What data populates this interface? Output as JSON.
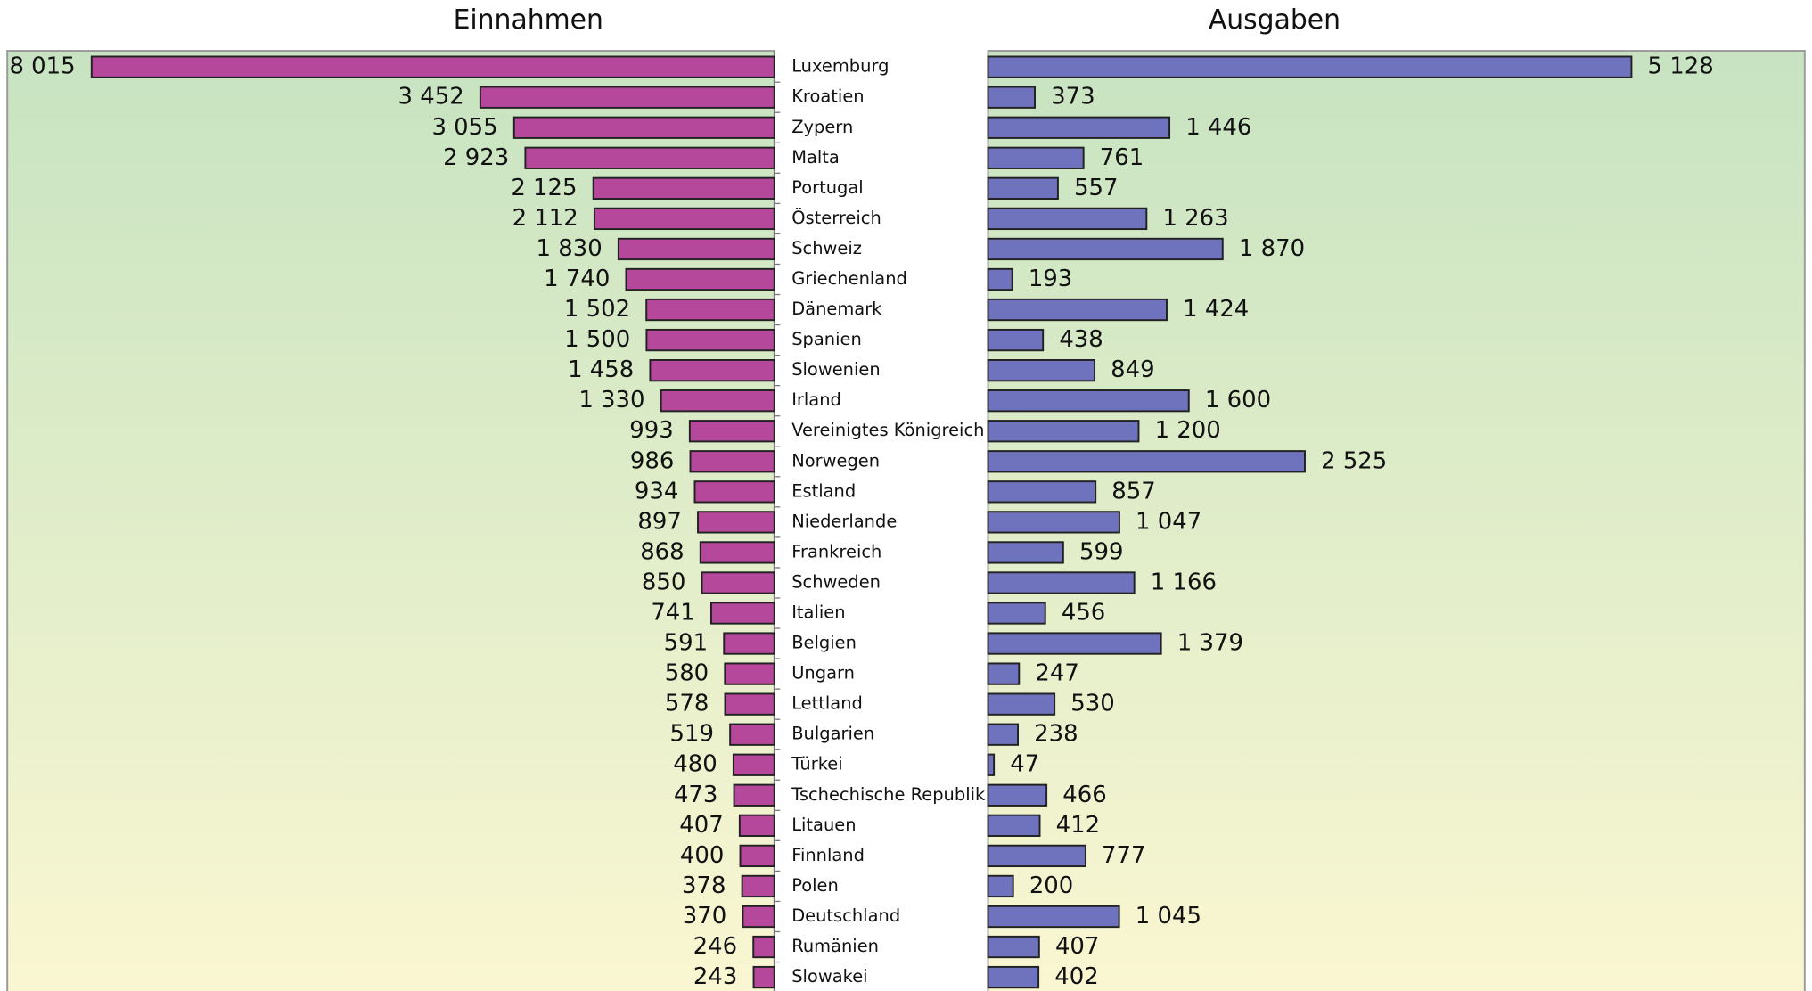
{
  "chart_data": {
    "type": "bar",
    "orientation": "horizontal",
    "categories": [
      "Luxemburg",
      "Kroatien",
      "Zypern",
      "Malta",
      "Portugal",
      "Österreich",
      "Schweiz",
      "Griechenland",
      "Dänemark",
      "Spanien",
      "Slowenien",
      "Irland",
      "Vereinigtes Königreich",
      "Norwegen",
      "Estland",
      "Niederlande",
      "Frankreich",
      "Schweden",
      "Italien",
      "Belgien",
      "Ungarn",
      "Lettland",
      "Bulgarien",
      "Türkei",
      "Tschechische Republik",
      "Litauen",
      "Finnland",
      "Polen",
      "Deutschland",
      "Rumänien",
      "Slowakei"
    ],
    "series": [
      {
        "name": "Einnahmen",
        "color": "#b6489c",
        "values": [
          8015,
          3452,
          3055,
          2923,
          2125,
          2112,
          1830,
          1740,
          1502,
          1500,
          1458,
          1330,
          993,
          986,
          934,
          897,
          868,
          850,
          741,
          591,
          580,
          578,
          519,
          480,
          473,
          407,
          400,
          378,
          370,
          246,
          243
        ],
        "value_labels": [
          "8 015",
          "3 452",
          "3 055",
          "2 923",
          "2 125",
          "2 112",
          "1 830",
          "1 740",
          "1 502",
          "1 500",
          "1 458",
          "1 330",
          "993",
          "986",
          "934",
          "897",
          "868",
          "850",
          "741",
          "591",
          "580",
          "578",
          "519",
          "480",
          "473",
          "407",
          "400",
          "378",
          "370",
          "246",
          "243"
        ]
      },
      {
        "name": "Ausgaben",
        "color": "#6f73bd",
        "values": [
          5128,
          373,
          1446,
          761,
          557,
          1263,
          1870,
          193,
          1424,
          438,
          849,
          1600,
          1200,
          2525,
          857,
          1047,
          599,
          1166,
          456,
          1379,
          247,
          530,
          238,
          47,
          466,
          412,
          777,
          200,
          1045,
          407,
          402
        ],
        "value_labels": [
          "5 128",
          "373",
          "1 446",
          "761",
          "557",
          "1 263",
          "1 870",
          "193",
          "1 424",
          "438",
          "849",
          "1 600",
          "1 200",
          "2 525",
          "857",
          "1 047",
          "599",
          "1 166",
          "456",
          "1 379",
          "247",
          "530",
          "238",
          "47",
          "466",
          "412",
          "777",
          "200",
          "1 045",
          "407",
          "402"
        ]
      }
    ]
  }
}
